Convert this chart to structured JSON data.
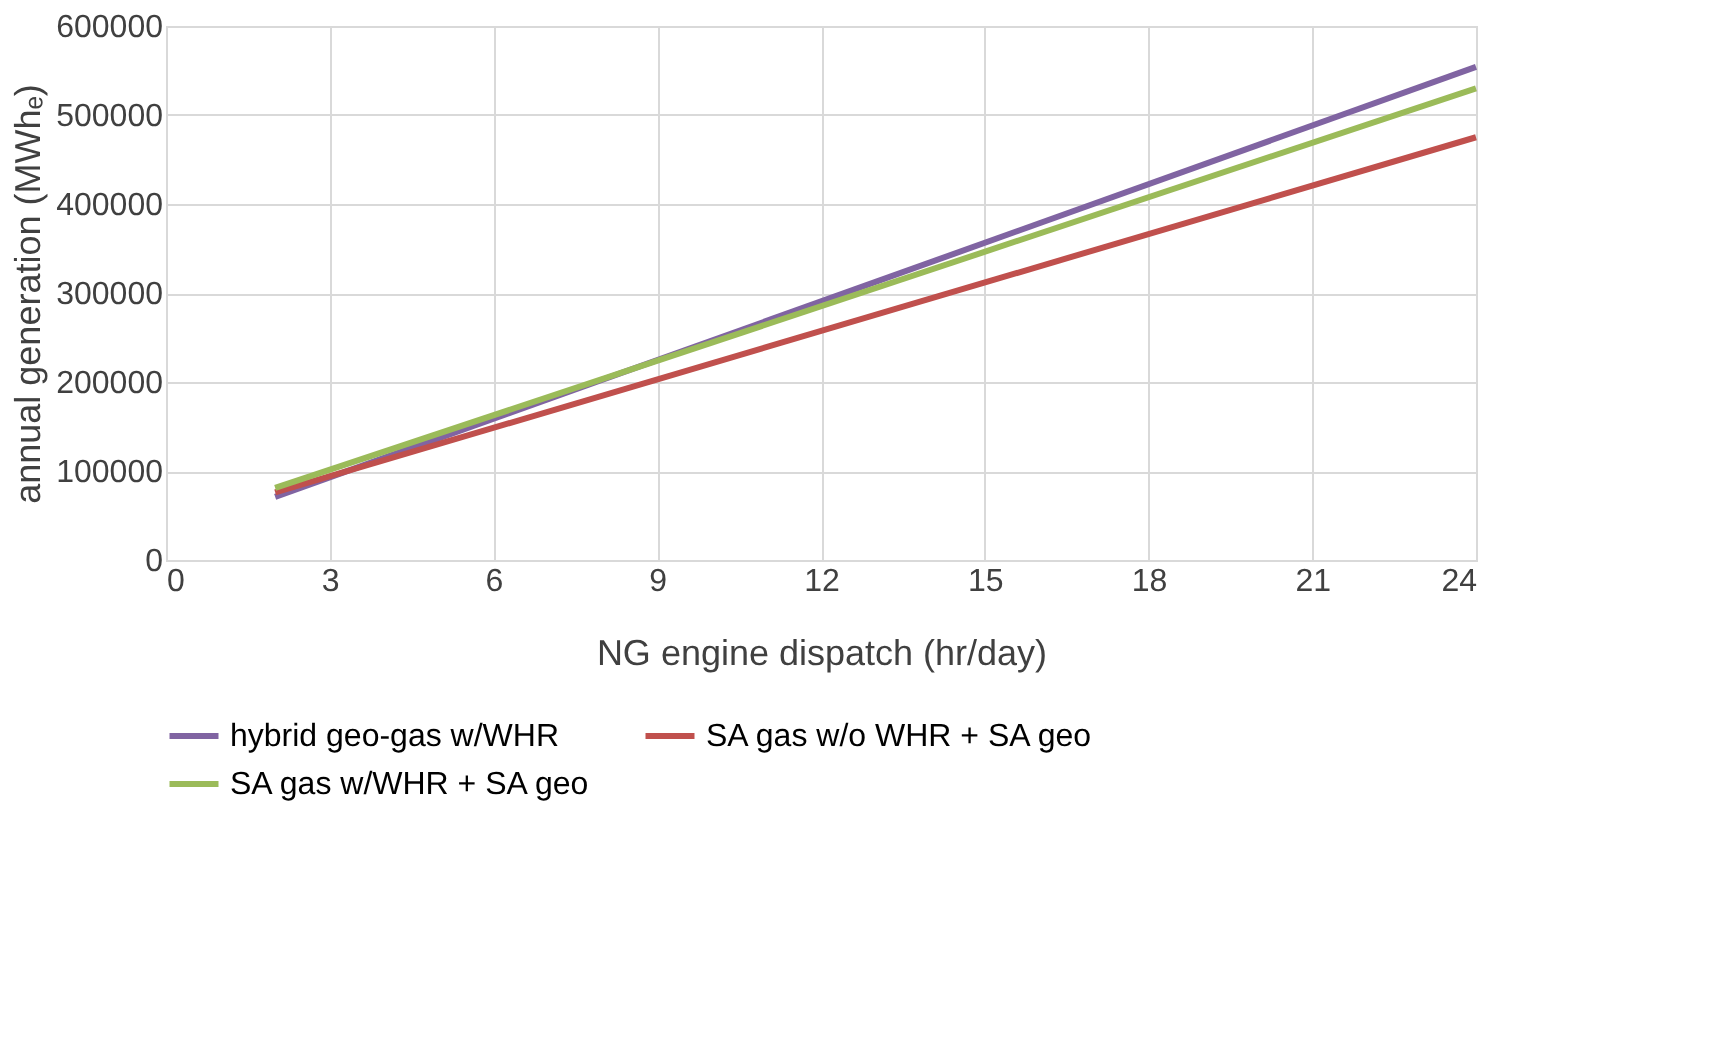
{
  "chart_data": {
    "type": "line",
    "xlabel": "NG engine dispatch (hr/day)",
    "ylabel": "annual generation (MWhₑ)",
    "x": [
      2,
      24
    ],
    "series": [
      {
        "name": "hybrid geo-gas w/WHR",
        "color": "#8064a2",
        "values": [
          71000,
          554000
        ]
      },
      {
        "name": "SA gas w/o WHR + SA geo",
        "color": "#c0504d",
        "values": [
          76000,
          475000
        ]
      },
      {
        "name": "SA gas w/WHR + SA geo",
        "color": "#9bbb59",
        "values": [
          81000,
          530000
        ]
      }
    ],
    "xlim": [
      0,
      24
    ],
    "xticks": [
      0,
      3,
      6,
      9,
      12,
      15,
      18,
      21,
      24
    ],
    "ylim": [
      0,
      600000
    ],
    "yticks": [
      0,
      100000,
      200000,
      300000,
      400000,
      500000,
      600000
    ],
    "grid": true,
    "legend": "bottom",
    "marker": "none",
    "line_style": "solid"
  }
}
